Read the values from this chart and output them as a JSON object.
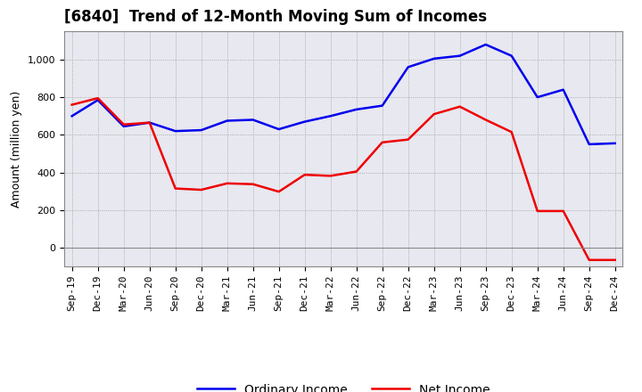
{
  "title": "[6840]  Trend of 12-Month Moving Sum of Incomes",
  "ylabel": "Amount (million yen)",
  "x_labels": [
    "Sep-19",
    "Dec-19",
    "Mar-20",
    "Jun-20",
    "Sep-20",
    "Dec-20",
    "Mar-21",
    "Jun-21",
    "Sep-21",
    "Dec-21",
    "Mar-22",
    "Jun-22",
    "Sep-22",
    "Dec-22",
    "Mar-23",
    "Jun-23",
    "Sep-23",
    "Dec-23",
    "Mar-24",
    "Jun-24",
    "Sep-24",
    "Dec-24"
  ],
  "ordinary_income": [
    700,
    785,
    645,
    665,
    620,
    625,
    675,
    680,
    630,
    670,
    700,
    735,
    755,
    960,
    1005,
    1020,
    1080,
    1020,
    800,
    840,
    550,
    555
  ],
  "net_income": [
    760,
    795,
    655,
    665,
    315,
    308,
    342,
    338,
    298,
    388,
    382,
    405,
    560,
    575,
    710,
    750,
    680,
    615,
    195,
    195,
    -65,
    -65
  ],
  "ordinary_color": "#0000ee",
  "net_color": "#ee0000",
  "ylim_min": -100,
  "ylim_max": 1150,
  "yticks": [
    0,
    200,
    400,
    600,
    800,
    1000
  ],
  "plot_bg_color": "#e8e8f0",
  "outer_bg_color": "#ffffff",
  "grid_color": "#aaaaaa",
  "line_width": 1.8,
  "title_fontsize": 12,
  "tick_fontsize": 8,
  "ylabel_fontsize": 9,
  "legend_fontsize": 10
}
